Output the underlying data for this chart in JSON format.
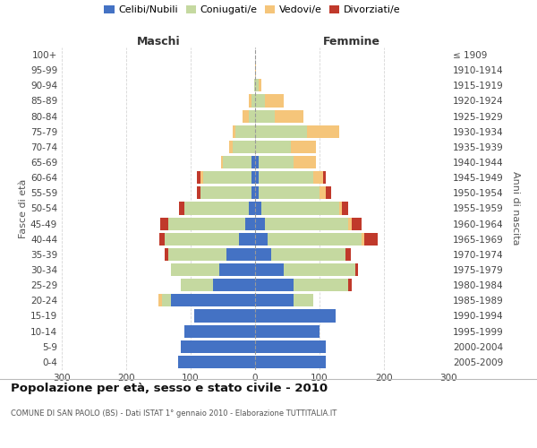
{
  "age_groups": [
    "0-4",
    "5-9",
    "10-14",
    "15-19",
    "20-24",
    "25-29",
    "30-34",
    "35-39",
    "40-44",
    "45-49",
    "50-54",
    "55-59",
    "60-64",
    "65-69",
    "70-74",
    "75-79",
    "80-84",
    "85-89",
    "90-94",
    "95-99",
    "100+"
  ],
  "birth_years": [
    "2005-2009",
    "2000-2004",
    "1995-1999",
    "1990-1994",
    "1985-1989",
    "1980-1984",
    "1975-1979",
    "1970-1974",
    "1965-1969",
    "1960-1964",
    "1955-1959",
    "1950-1954",
    "1945-1949",
    "1940-1944",
    "1935-1939",
    "1930-1934",
    "1925-1929",
    "1920-1924",
    "1915-1919",
    "1910-1914",
    "≤ 1909"
  ],
  "males": {
    "celibi": [
      120,
      115,
      110,
      95,
      130,
      65,
      55,
      45,
      25,
      15,
      10,
      5,
      5,
      5,
      0,
      0,
      0,
      0,
      0,
      0,
      0
    ],
    "coniugati": [
      0,
      0,
      0,
      0,
      15,
      50,
      75,
      90,
      115,
      120,
      100,
      80,
      75,
      45,
      35,
      30,
      10,
      5,
      2,
      0,
      0
    ],
    "vedovi": [
      0,
      0,
      0,
      0,
      5,
      0,
      0,
      0,
      0,
      0,
      0,
      0,
      5,
      3,
      5,
      5,
      10,
      5,
      0,
      0,
      0
    ],
    "divorziati": [
      0,
      0,
      0,
      0,
      0,
      0,
      0,
      5,
      8,
      12,
      8,
      5,
      5,
      0,
      0,
      0,
      0,
      0,
      0,
      0,
      0
    ]
  },
  "females": {
    "nubili": [
      110,
      110,
      100,
      125,
      60,
      60,
      45,
      25,
      20,
      15,
      10,
      5,
      5,
      5,
      0,
      0,
      0,
      0,
      0,
      0,
      0
    ],
    "coniugate": [
      0,
      0,
      0,
      0,
      30,
      85,
      110,
      115,
      145,
      130,
      120,
      95,
      85,
      55,
      55,
      80,
      30,
      15,
      5,
      0,
      0
    ],
    "vedove": [
      0,
      0,
      0,
      0,
      0,
      0,
      0,
      0,
      5,
      5,
      5,
      10,
      15,
      35,
      40,
      50,
      45,
      30,
      5,
      2,
      0
    ],
    "divorziate": [
      0,
      0,
      0,
      0,
      0,
      5,
      5,
      8,
      20,
      15,
      10,
      8,
      5,
      0,
      0,
      0,
      0,
      0,
      0,
      0,
      0
    ]
  },
  "colors": {
    "celibi_nubili": "#4472C4",
    "coniugati": "#C5D9A0",
    "vedovi": "#F5C57A",
    "divorziati": "#C0392B"
  },
  "xlim": 300,
  "title": "Popolazione per età, sesso e stato civile - 2010",
  "subtitle": "COMUNE DI SAN PAOLO (BS) - Dati ISTAT 1° gennaio 2010 - Elaborazione TUTTITALIA.IT",
  "legend_labels": [
    "Celibi/Nubili",
    "Coniugati/e",
    "Vedovi/e",
    "Divorziati/e"
  ]
}
